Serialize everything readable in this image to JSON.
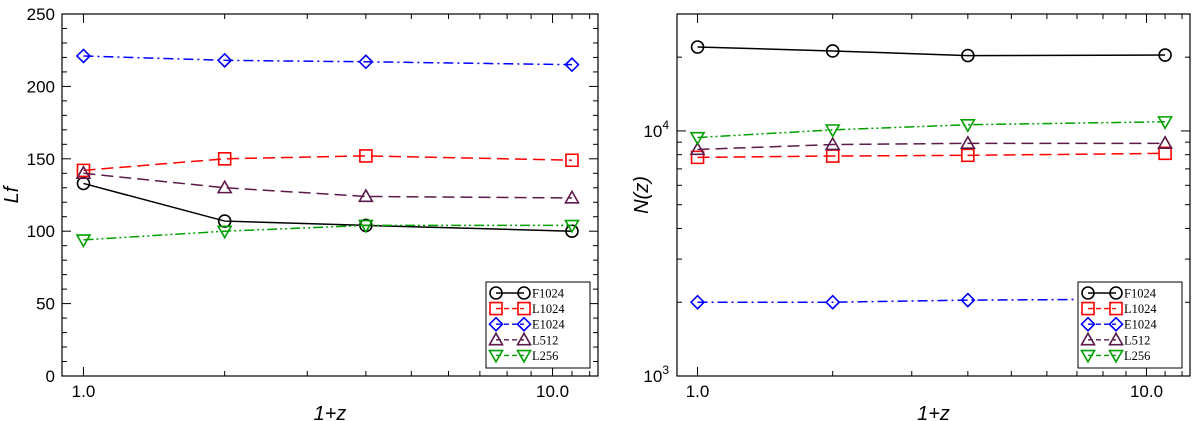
{
  "chart_data": [
    {
      "type": "line",
      "xlabel": "1+z",
      "ylabel": "Lf",
      "xscale": "log",
      "yscale": "linear",
      "xlim": [
        0.9,
        12.5
      ],
      "ylim": [
        0,
        250
      ],
      "xticks": [
        {
          "value": 1.0,
          "label": "1.0"
        },
        {
          "value": 10.0,
          "label": "10.0"
        }
      ],
      "yticks": [
        {
          "value": 0,
          "label": "0"
        },
        {
          "value": 50,
          "label": "50"
        },
        {
          "value": 100,
          "label": "100"
        },
        {
          "value": 150,
          "label": "150"
        },
        {
          "value": 200,
          "label": "200"
        },
        {
          "value": 250,
          "label": "250"
        }
      ],
      "legend_position": "lower-right",
      "x": [
        1.0,
        2.0,
        4.0,
        11.0
      ],
      "series": [
        {
          "name": "F1024",
          "values": [
            133,
            107,
            104,
            100
          ],
          "color": "#000000",
          "marker": "circle",
          "dash": "solid"
        },
        {
          "name": "L1024",
          "values": [
            142,
            150,
            152,
            149
          ],
          "color": "#ff0000",
          "marker": "square",
          "dash": "dashed"
        },
        {
          "name": "E1024",
          "values": [
            221,
            218,
            217,
            215
          ],
          "color": "#0000ff",
          "marker": "diamond",
          "dash": "dashdot"
        },
        {
          "name": "L512",
          "values": [
            140,
            130,
            124,
            123
          ],
          "color": "#5a1a4a",
          "marker": "triangle-up",
          "dash": "dashed"
        },
        {
          "name": "L256",
          "values": [
            94,
            100,
            104,
            104
          ],
          "color": "#00a000",
          "marker": "triangle-down",
          "dash": "dashdotdot"
        }
      ]
    },
    {
      "type": "line",
      "xlabel": "1+z",
      "ylabel": "N(z)",
      "xscale": "log",
      "yscale": "log",
      "xlim": [
        0.9,
        12.5
      ],
      "ylim": [
        1000,
        30000
      ],
      "xticks": [
        {
          "value": 1.0,
          "label": "1.0"
        },
        {
          "value": 10.0,
          "label": "10.0"
        }
      ],
      "yticks": [
        {
          "value": 1000,
          "base": "10",
          "exp": "3"
        },
        {
          "value": 10000,
          "base": "10",
          "exp": "4"
        }
      ],
      "legend_position": "lower-right",
      "x": [
        1.0,
        2.0,
        4.0,
        11.0
      ],
      "series": [
        {
          "name": "F1024",
          "values": [
            22000,
            21200,
            20300,
            20400
          ],
          "color": "#000000",
          "marker": "circle",
          "dash": "solid"
        },
        {
          "name": "L1024",
          "values": [
            7800,
            7900,
            7950,
            8100
          ],
          "color": "#ff0000",
          "marker": "square",
          "dash": "dashed"
        },
        {
          "name": "E1024",
          "values": [
            2000,
            2000,
            2040,
            2060
          ],
          "color": "#0000ff",
          "marker": "diamond",
          "dash": "dashdot"
        },
        {
          "name": "L512",
          "values": [
            8400,
            8800,
            8900,
            8900
          ],
          "color": "#5a1a4a",
          "marker": "triangle-up",
          "dash": "dashed"
        },
        {
          "name": "L256",
          "values": [
            9400,
            10100,
            10600,
            10900
          ],
          "color": "#00a000",
          "marker": "triangle-down",
          "dash": "dashdotdot"
        }
      ]
    }
  ]
}
